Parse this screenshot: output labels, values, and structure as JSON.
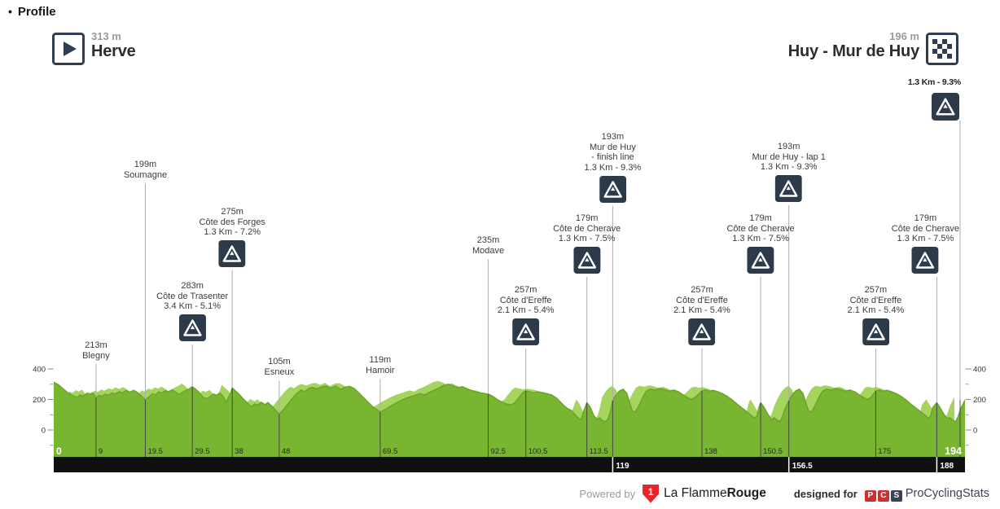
{
  "page": {
    "bullet": "•",
    "title": "Profile"
  },
  "header": {
    "start": {
      "elevation": "313 m",
      "name": "Herve"
    },
    "finish": {
      "elevation": "196 m",
      "name": "Huy - Mur de Huy",
      "climb_note": "1.3 Km - 9.3%"
    }
  },
  "footer": {
    "powered_by": "Powered by",
    "lfr_digit": "1",
    "lfr_name_regular": "La Flamme",
    "lfr_name_bold": "Rouge",
    "designed_for": "designed for",
    "pcs_letters": [
      "P",
      "C",
      "S"
    ],
    "pcs_name": "ProCyclingStats"
  },
  "colors": {
    "profile_dark": "#78b530",
    "profile_light": "#a6d55f",
    "profile_stroke": "#6aa52a",
    "icon_bg": "#2c3a49",
    "icon_border": "#2e3d4f",
    "bar": "#101010",
    "line_gray": "#adadad",
    "line_dark": "#454545",
    "axis_text": "#333333",
    "accent_red": "#cc2f2e",
    "navy": "#3a4354"
  },
  "chart_data": {
    "type": "area",
    "title": "Stage profile Herve - Huy (Mur de Huy)",
    "x_unit": "km",
    "y_unit": "m",
    "xlim": [
      0,
      194
    ],
    "ylim": [
      -176,
      500
    ],
    "grid": false,
    "x_axis": {
      "inner_labels": [
        9,
        19.5,
        29.5,
        38,
        48,
        69.5,
        92.5,
        100.5,
        113.5,
        138,
        150.5,
        175
      ],
      "start_label": "0",
      "end_label": "194",
      "bar_labels": [
        119,
        156.5,
        188
      ]
    },
    "y_axis": {
      "major": [
        0,
        200,
        400
      ],
      "minor": [
        -100,
        100,
        300
      ]
    },
    "markers": [
      {
        "km": 9,
        "elev": 213,
        "lines": [
          "213m",
          "Blegny"
        ],
        "climb": false,
        "top": 418
      },
      {
        "km": 19.5,
        "elev": 199,
        "lines": [
          "199m",
          "Soumagne"
        ],
        "climb": false,
        "top": 196
      },
      {
        "km": 29.5,
        "elev": 283,
        "lines": [
          "283m",
          "Côte de Trasenter",
          "3.4 Km - 5.1%"
        ],
        "climb": true,
        "top": 345
      },
      {
        "km": 38,
        "elev": 275,
        "lines": [
          "275m",
          "Côte des Forges",
          "1.3 Km - 7.2%"
        ],
        "climb": true,
        "top": 254
      },
      {
        "km": 48,
        "elev": 105,
        "lines": [
          "105m",
          "Esneux"
        ],
        "climb": false,
        "top": 438
      },
      {
        "km": 69.5,
        "elev": 119,
        "lines": [
          "119m",
          "Hamoir"
        ],
        "climb": false,
        "top": 436
      },
      {
        "km": 92.5,
        "elev": 235,
        "lines": [
          "235m",
          "Modave"
        ],
        "climb": false,
        "top": 289
      },
      {
        "km": 100.5,
        "elev": 257,
        "lines": [
          "257m",
          "Côte d'Ereffe",
          "2.1 Km - 5.4%"
        ],
        "climb": true,
        "top": 350
      },
      {
        "km": 113.5,
        "elev": 179,
        "lines": [
          "179m",
          "Côte de Cherave",
          "1.3 Km - 7.5%"
        ],
        "climb": true,
        "top": 262
      },
      {
        "km": 119,
        "elev": 193,
        "lines": [
          "193m",
          "Mur de Huy",
          "- finish line",
          "1.3 Km - 9.3%"
        ],
        "climb": true,
        "top": 162
      },
      {
        "km": 138,
        "elev": 257,
        "lines": [
          "257m",
          "Côte d'Ereffe",
          "2.1 Km - 5.4%"
        ],
        "climb": true,
        "top": 350
      },
      {
        "km": 150.5,
        "elev": 179,
        "lines": [
          "179m",
          "Côte de Cherave",
          "1.3 Km - 7.5%"
        ],
        "climb": true,
        "top": 262
      },
      {
        "km": 156.5,
        "elev": 193,
        "lines": [
          "193m",
          "Mur de Huy - lap 1",
          "1.3 Km - 9.3%"
        ],
        "climb": true,
        "top": 174
      },
      {
        "km": 175,
        "elev": 257,
        "lines": [
          "257m",
          "Côte d'Ereffe",
          "2.1 Km - 5.4%"
        ],
        "climb": true,
        "top": 350
      },
      {
        "km": 188,
        "elev": 179,
        "lines": [
          "179m",
          "Côte de Cherave",
          "1.3 Km - 7.5%"
        ],
        "climb": true,
        "top": 262,
        "dx": -14
      }
    ],
    "finish_marker": {
      "km": 194,
      "elev": 196,
      "line_top": 148
    },
    "profile": [
      [
        0,
        313
      ],
      [
        1,
        296
      ],
      [
        2,
        270
      ],
      [
        3,
        244
      ],
      [
        4,
        226
      ],
      [
        5,
        214
      ],
      [
        5.6,
        230
      ],
      [
        6.2,
        222
      ],
      [
        7,
        240
      ],
      [
        7.6,
        231
      ],
      [
        8.3,
        243
      ],
      [
        9,
        213
      ],
      [
        9.6,
        228
      ],
      [
        10.2,
        220
      ],
      [
        11,
        236
      ],
      [
        11.6,
        228
      ],
      [
        12.4,
        244
      ],
      [
        13,
        236
      ],
      [
        14,
        252
      ],
      [
        14.6,
        243
      ],
      [
        15.4,
        258
      ],
      [
        16.2,
        248
      ],
      [
        17,
        260
      ],
      [
        17.8,
        246
      ],
      [
        18.6,
        224
      ],
      [
        19.5,
        199
      ],
      [
        20.2,
        214
      ],
      [
        21,
        238
      ],
      [
        21.6,
        230
      ],
      [
        22.4,
        250
      ],
      [
        23,
        242
      ],
      [
        23.8,
        258
      ],
      [
        24.4,
        250
      ],
      [
        25.2,
        263
      ],
      [
        26,
        248
      ],
      [
        26.6,
        232
      ],
      [
        27.4,
        246
      ],
      [
        28.2,
        260
      ],
      [
        29,
        272
      ],
      [
        29.5,
        283
      ],
      [
        30.2,
        268
      ],
      [
        31,
        244
      ],
      [
        31.8,
        215
      ],
      [
        32.6,
        206
      ],
      [
        33.4,
        220
      ],
      [
        34,
        236
      ],
      [
        34.6,
        228
      ],
      [
        35.4,
        242
      ],
      [
        36,
        222
      ],
      [
        36.7,
        184
      ],
      [
        37.2,
        212
      ],
      [
        37.7,
        246
      ],
      [
        38,
        275
      ],
      [
        38.6,
        258
      ],
      [
        39.4,
        236
      ],
      [
        40.2,
        208
      ],
      [
        41,
        184
      ],
      [
        42,
        152
      ],
      [
        42.8,
        172
      ],
      [
        43.4,
        162
      ],
      [
        44.2,
        182
      ],
      [
        45,
        166
      ],
      [
        45.6,
        180
      ],
      [
        46.4,
        158
      ],
      [
        47.2,
        130
      ],
      [
        48,
        105
      ],
      [
        48.8,
        130
      ],
      [
        49.6,
        162
      ],
      [
        50.6,
        200
      ],
      [
        51.6,
        235
      ],
      [
        52.6,
        262
      ],
      [
        53.4,
        252
      ],
      [
        54.2,
        270
      ],
      [
        55,
        280
      ],
      [
        56,
        270
      ],
      [
        57,
        282
      ],
      [
        58,
        288
      ],
      [
        59,
        274
      ],
      [
        60,
        288
      ],
      [
        61,
        266
      ],
      [
        62,
        281
      ],
      [
        63,
        286
      ],
      [
        64,
        271
      ],
      [
        65,
        242
      ],
      [
        66,
        210
      ],
      [
        67,
        180
      ],
      [
        68,
        150
      ],
      [
        69,
        128
      ],
      [
        69.5,
        119
      ],
      [
        70.2,
        128
      ],
      [
        71,
        142
      ],
      [
        72,
        162
      ],
      [
        73,
        178
      ],
      [
        74,
        194
      ],
      [
        75,
        208
      ],
      [
        76,
        218
      ],
      [
        77,
        228
      ],
      [
        78,
        238
      ],
      [
        79,
        230
      ],
      [
        80,
        248
      ],
      [
        81,
        260
      ],
      [
        82,
        276
      ],
      [
        83,
        292
      ],
      [
        84,
        300
      ],
      [
        85,
        290
      ],
      [
        86,
        276
      ],
      [
        87,
        284
      ],
      [
        88,
        270
      ],
      [
        89,
        258
      ],
      [
        90,
        248
      ],
      [
        91,
        242
      ],
      [
        92.5,
        235
      ],
      [
        93.4,
        222
      ],
      [
        94.4,
        200
      ],
      [
        95.4,
        182
      ],
      [
        96.4,
        170
      ],
      [
        97.4,
        166
      ],
      [
        98.2,
        178
      ],
      [
        99,
        212
      ],
      [
        99.8,
        242
      ],
      [
        100.5,
        257
      ],
      [
        101.4,
        250
      ],
      [
        102.2,
        244
      ],
      [
        103,
        249
      ],
      [
        104,
        245
      ],
      [
        105,
        238
      ],
      [
        106,
        230
      ],
      [
        107,
        210
      ],
      [
        107.8,
        185
      ],
      [
        108.6,
        160
      ],
      [
        109.4,
        140
      ],
      [
        110.2,
        128
      ],
      [
        111,
        100
      ],
      [
        111.8,
        75
      ],
      [
        112.3,
        70
      ],
      [
        112.8,
        120
      ],
      [
        113.5,
        179
      ],
      [
        114.2,
        150
      ],
      [
        114.9,
        100
      ],
      [
        115.6,
        70
      ],
      [
        116.2,
        80
      ],
      [
        116.8,
        62
      ],
      [
        117.4,
        55
      ],
      [
        118,
        70
      ],
      [
        118.5,
        120
      ],
      [
        119,
        193
      ],
      [
        119.6,
        225
      ],
      [
        120.4,
        255
      ],
      [
        121.2,
        268
      ],
      [
        122,
        240
      ],
      [
        122.6,
        180
      ],
      [
        123.2,
        125
      ],
      [
        123.8,
        118
      ],
      [
        124.6,
        160
      ],
      [
        125.4,
        215
      ],
      [
        126.2,
        255
      ],
      [
        127,
        268
      ],
      [
        128,
        262
      ],
      [
        129,
        272
      ],
      [
        130,
        265
      ],
      [
        131,
        255
      ],
      [
        132,
        262
      ],
      [
        133,
        250
      ],
      [
        134,
        230
      ],
      [
        135,
        210
      ],
      [
        135.8,
        200
      ],
      [
        136.6,
        215
      ],
      [
        137.3,
        235
      ],
      [
        138,
        257
      ],
      [
        138.8,
        262
      ],
      [
        139.6,
        255
      ],
      [
        140.4,
        260
      ],
      [
        141.4,
        250
      ],
      [
        142.4,
        238
      ],
      [
        143.4,
        220
      ],
      [
        144.4,
        198
      ],
      [
        145.4,
        172
      ],
      [
        146.4,
        148
      ],
      [
        147.4,
        124
      ],
      [
        148.4,
        98
      ],
      [
        149.2,
        78
      ],
      [
        149.7,
        90
      ],
      [
        150.1,
        145
      ],
      [
        150.5,
        179
      ],
      [
        151.2,
        150
      ],
      [
        152,
        105
      ],
      [
        152.8,
        68
      ],
      [
        153.4,
        80
      ],
      [
        154,
        64
      ],
      [
        154.6,
        55
      ],
      [
        155.1,
        85
      ],
      [
        155.7,
        140
      ],
      [
        156.5,
        193
      ],
      [
        157.1,
        225
      ],
      [
        157.9,
        255
      ],
      [
        158.7,
        268
      ],
      [
        159.5,
        240
      ],
      [
        160.1,
        180
      ],
      [
        160.7,
        125
      ],
      [
        161.3,
        118
      ],
      [
        162.1,
        160
      ],
      [
        162.9,
        215
      ],
      [
        163.7,
        255
      ],
      [
        164.5,
        268
      ],
      [
        165.5,
        262
      ],
      [
        166.5,
        272
      ],
      [
        167.5,
        265
      ],
      [
        168.5,
        255
      ],
      [
        169.5,
        262
      ],
      [
        170.5,
        250
      ],
      [
        171.5,
        230
      ],
      [
        172.5,
        210
      ],
      [
        173.3,
        200
      ],
      [
        174,
        215
      ],
      [
        174.5,
        235
      ],
      [
        175,
        257
      ],
      [
        175.8,
        262
      ],
      [
        176.6,
        255
      ],
      [
        177.4,
        260
      ],
      [
        178.4,
        250
      ],
      [
        179.4,
        238
      ],
      [
        180.4,
        220
      ],
      [
        181.4,
        198
      ],
      [
        182.4,
        172
      ],
      [
        183.4,
        148
      ],
      [
        184.4,
        124
      ],
      [
        185.4,
        98
      ],
      [
        186.2,
        78
      ],
      [
        186.7,
        90
      ],
      [
        187.1,
        145
      ],
      [
        188,
        179
      ],
      [
        188.6,
        150
      ],
      [
        189.4,
        108
      ],
      [
        190.2,
        75
      ],
      [
        190.8,
        80
      ],
      [
        191.4,
        64
      ],
      [
        192,
        55
      ],
      [
        192.5,
        85
      ],
      [
        193.1,
        140
      ],
      [
        194,
        196
      ]
    ]
  }
}
